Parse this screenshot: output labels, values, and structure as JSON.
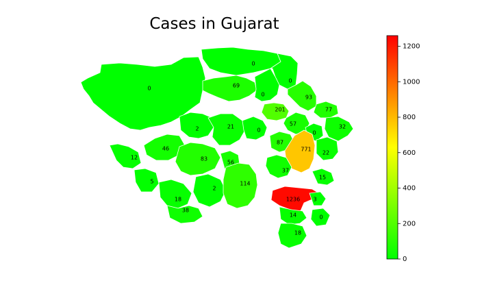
{
  "title": "Cases in Gujarat",
  "colorbar": {
    "min": 0,
    "max": 1260,
    "ticks": [
      0,
      200,
      400,
      600,
      800,
      1000,
      1200
    ],
    "colors": [
      "#00ff00",
      "#ffff00",
      "#ff0000"
    ]
  },
  "districts": [
    {
      "id": "kutch",
      "value": 0
    },
    {
      "id": "banaskantha",
      "value": 0
    },
    {
      "id": "sabarkantha",
      "value": 0
    },
    {
      "id": "patan",
      "value": 69
    },
    {
      "id": "mehsana",
      "value": 0
    },
    {
      "id": "arvalli",
      "value": 93
    },
    {
      "id": "gandhinagar",
      "value": 201
    },
    {
      "id": "mahisagar",
      "value": 77
    },
    {
      "id": "ahmedabad_north",
      "value": 57
    },
    {
      "id": "kheda",
      "value": 0
    },
    {
      "id": "dahod",
      "value": 32
    },
    {
      "id": "morbi",
      "value": 2
    },
    {
      "id": "surendranagar",
      "value": 21
    },
    {
      "id": "ahmedabad_rural",
      "value": 0
    },
    {
      "id": "anand",
      "value": 87
    },
    {
      "id": "vadodara",
      "value": 771
    },
    {
      "id": "panchmahal",
      "value": 22
    },
    {
      "id": "jamnagar",
      "value": 46
    },
    {
      "id": "devbhumi_dwarka",
      "value": 12
    },
    {
      "id": "rajkot",
      "value": 83
    },
    {
      "id": "botad",
      "value": 56
    },
    {
      "id": "bharuch",
      "value": 37
    },
    {
      "id": "narmada",
      "value": 15
    },
    {
      "id": "porbandar",
      "value": 5
    },
    {
      "id": "amreli",
      "value": 2
    },
    {
      "id": "bhavnagar",
      "value": 114
    },
    {
      "id": "surat",
      "value": 1236
    },
    {
      "id": "tapi",
      "value": 3
    },
    {
      "id": "junagadh",
      "value": 18
    },
    {
      "id": "gir_somnath",
      "value": 38
    },
    {
      "id": "navsari",
      "value": 14
    },
    {
      "id": "dang",
      "value": 0
    },
    {
      "id": "valsad",
      "value": 18
    }
  ]
}
